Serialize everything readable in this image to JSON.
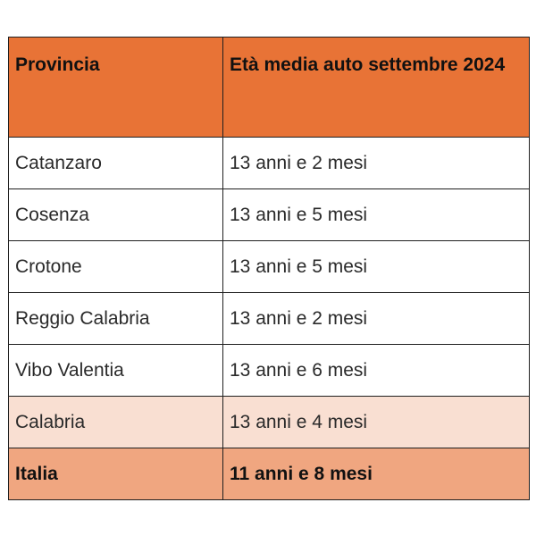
{
  "table": {
    "header": {
      "col1": "Provincia",
      "col2": "Età media auto settembre 2024"
    },
    "rows": [
      {
        "provincia": "Catanzaro",
        "eta": "13 anni e 2 mesi"
      },
      {
        "provincia": "Cosenza",
        "eta": "13 anni e 5 mesi"
      },
      {
        "provincia": "Crotone",
        "eta": "13 anni e 5 mesi"
      },
      {
        "provincia": "Reggio Calabria",
        "eta": "13 anni e 2 mesi"
      },
      {
        "provincia": "Vibo Valentia",
        "eta": "13 anni e 6 mesi"
      }
    ],
    "region": {
      "provincia": "Calabria",
      "eta": "13 anni e 4 mesi"
    },
    "nation": {
      "provincia": "Italia",
      "eta": "11 anni e 8 mesi"
    }
  },
  "colors": {
    "header_bg": "#e87336",
    "region_bg": "#f9dfd2",
    "nation_bg": "#f0a680",
    "border": "#1f1f1f"
  }
}
